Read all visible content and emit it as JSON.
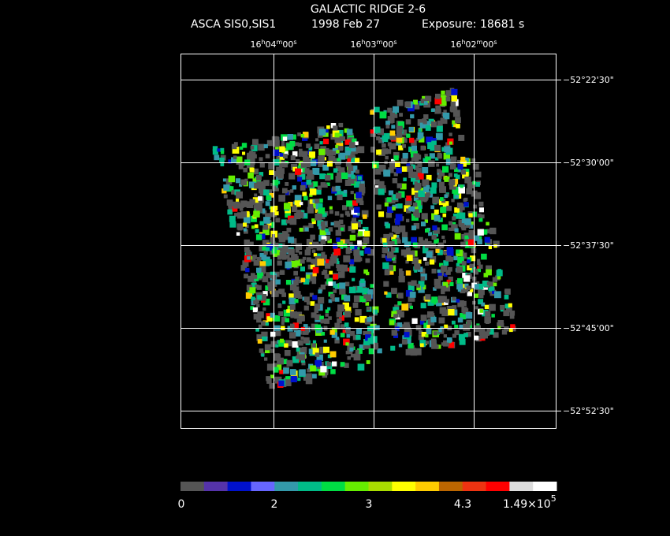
{
  "header": {
    "title": "GALACTIC RIDGE 2-6",
    "instrument": "ASCA SIS0,SIS1",
    "date": "1998 Feb 27",
    "exposure": "Exposure: 18681 s"
  },
  "ra_labels": [
    [
      "16",
      "h",
      "04",
      "m",
      "00",
      "s"
    ],
    [
      "16",
      "h",
      "03",
      "m",
      "00",
      "s"
    ],
    [
      "16",
      "h",
      "02",
      "m",
      "00",
      "s"
    ]
  ],
  "dec_labels": [
    "−52°22'30\"",
    "−52°30'00\"",
    "−52°37'30\"",
    "−52°45'00\"",
    "−52°52'30\""
  ],
  "colorbar": {
    "colors": [
      "#555555",
      "#5533aa",
      "#0011cc",
      "#6666ff",
      "#3399aa",
      "#00bb88",
      "#00dd44",
      "#66ee00",
      "#aadd00",
      "#ffff00",
      "#ffcc00",
      "#bb6600",
      "#ee3311",
      "#ff0000",
      "#dddddd",
      "#ffffff"
    ],
    "labels": [
      "0",
      "2",
      "3",
      "4.3"
    ],
    "max_label": "1.49×10",
    "max_exponent": "5"
  }
}
